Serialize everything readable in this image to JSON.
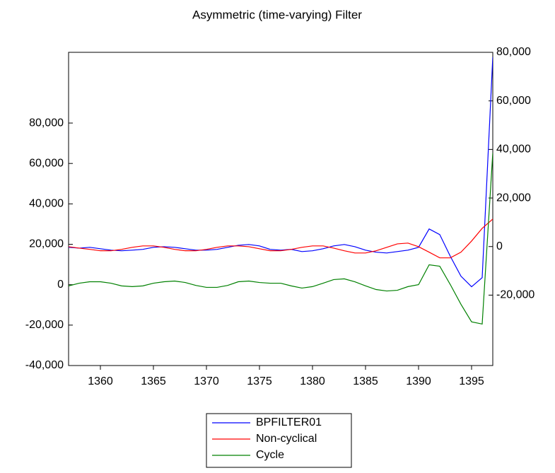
{
  "chart_data": {
    "type": "line",
    "title": "Asymmetric (time-varying) Filter",
    "x": [
      1357,
      1358,
      1359,
      1360,
      1361,
      1362,
      1363,
      1364,
      1365,
      1366,
      1367,
      1368,
      1369,
      1370,
      1371,
      1372,
      1373,
      1374,
      1375,
      1376,
      1377,
      1378,
      1379,
      1380,
      1381,
      1382,
      1383,
      1384,
      1385,
      1386,
      1387,
      1388,
      1389,
      1390,
      1391,
      1392,
      1393,
      1394,
      1395,
      1396,
      1397
    ],
    "xlim": [
      1357,
      1397
    ],
    "xticks": [
      1360,
      1365,
      1370,
      1375,
      1380,
      1385,
      1390,
      1395
    ],
    "ylim": [
      -40000,
      115000
    ],
    "yticks": [
      {
        "value": -40000,
        "label": "-40,000"
      },
      {
        "value": -20000,
        "label": "-20,000"
      },
      0,
      {
        "value": 20000,
        "label": "20,000"
      },
      {
        "value": 40000,
        "label": "40,000"
      },
      {
        "value": 60000,
        "label": "60,000"
      },
      {
        "value": 80000,
        "label": "80,000"
      }
    ],
    "y2lim": [
      -49000,
      80000
    ],
    "y2ticks": [
      {
        "value": -20000,
        "label": "-20,000"
      },
      0,
      {
        "value": 20000,
        "label": "20,000"
      },
      {
        "value": 40000,
        "label": "40,000"
      },
      {
        "value": 60000,
        "label": "60,000"
      },
      {
        "value": 80000,
        "label": "80,000"
      }
    ],
    "series": [
      {
        "name": "BPFILTER01",
        "color": "#0000ff",
        "values": [
          18500,
          18100,
          18500,
          17800,
          17100,
          16800,
          17100,
          17500,
          18500,
          18800,
          18500,
          17800,
          17100,
          17100,
          17500,
          18500,
          19500,
          19900,
          19200,
          17500,
          17100,
          17500,
          16400,
          16800,
          17800,
          19200,
          19900,
          18800,
          17100,
          16100,
          15700,
          16400,
          17100,
          18500,
          27600,
          24800,
          14000,
          4200,
          -1000,
          3500,
          112700
        ]
      },
      {
        "name": "Non-cyclical",
        "color": "#ff0000",
        "values": [
          18800,
          18100,
          17500,
          16800,
          16800,
          17500,
          18500,
          19200,
          19200,
          18500,
          17500,
          16800,
          16800,
          17500,
          18500,
          19200,
          19200,
          18800,
          17800,
          16800,
          16800,
          17500,
          18500,
          19200,
          19200,
          18100,
          16800,
          15700,
          15700,
          16800,
          18500,
          20200,
          20600,
          18800,
          16100,
          13300,
          13300,
          16100,
          21600,
          27900,
          32500
        ]
      },
      {
        "name": "Cycle",
        "color": "#008000",
        "axis": "y2",
        "values": [
          -16200,
          -15100,
          -14500,
          -14500,
          -15100,
          -16200,
          -16500,
          -16200,
          -15100,
          -14500,
          -14200,
          -14800,
          -16000,
          -16800,
          -16800,
          -16000,
          -14500,
          -14200,
          -14800,
          -15100,
          -15100,
          -16200,
          -17100,
          -16500,
          -15100,
          -13600,
          -13300,
          -14500,
          -16200,
          -17700,
          -18300,
          -18000,
          -16500,
          -15700,
          -7500,
          -8100,
          -15700,
          -23800,
          -31000,
          -31900,
          38600
        ]
      }
    ]
  }
}
